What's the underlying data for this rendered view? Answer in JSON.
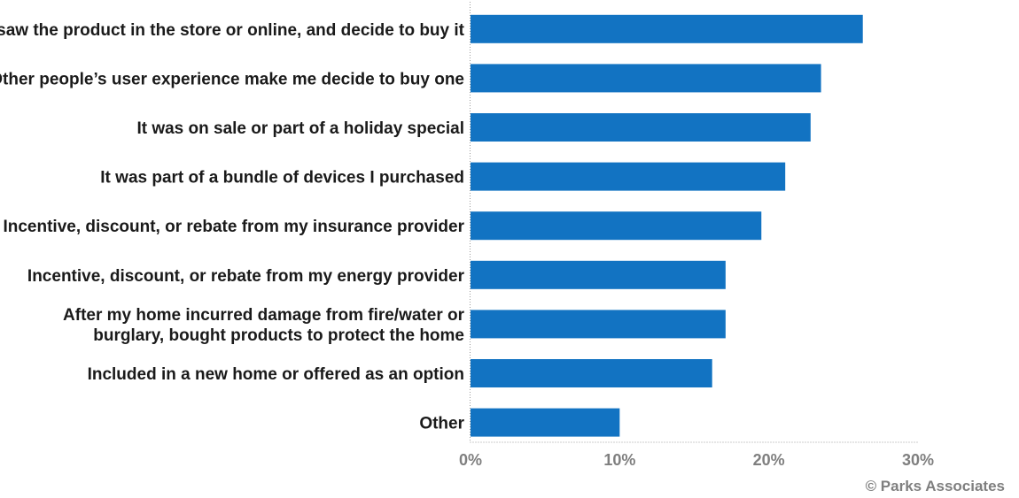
{
  "chart_data": {
    "type": "bar",
    "orientation": "horizontal",
    "categories": [
      [
        "I saw the product in the store or online, and decide to buy it"
      ],
      [
        "Other people’s user experience make me decide to buy one"
      ],
      [
        "It was on sale or part of a holiday special"
      ],
      [
        "It was part of a bundle of devices I purchased"
      ],
      [
        "Incentive, discount, or rebate from my insurance provider"
      ],
      [
        "Incentive, discount, or rebate from my energy provider"
      ],
      [
        "After my home incurred damage from fire/water or",
        "burglary, bought products to protect the home"
      ],
      [
        "Included in a new home or offered as an option"
      ],
      [
        "Other"
      ]
    ],
    "values": [
      26.3,
      23.5,
      22.8,
      21.1,
      19.5,
      17.1,
      17.1,
      16.2,
      10.0
    ],
    "xlim": [
      0,
      30
    ],
    "xticks": [
      0,
      10,
      20,
      30
    ],
    "xtick_labels": [
      "0%",
      "10%",
      "20%",
      "30%"
    ],
    "bar_color": "#1273c2",
    "axis_color": "#9a9a9a",
    "grid": false,
    "title": "",
    "xlabel": "",
    "ylabel": ""
  },
  "footer": {
    "copyright": "© Parks Associates"
  }
}
